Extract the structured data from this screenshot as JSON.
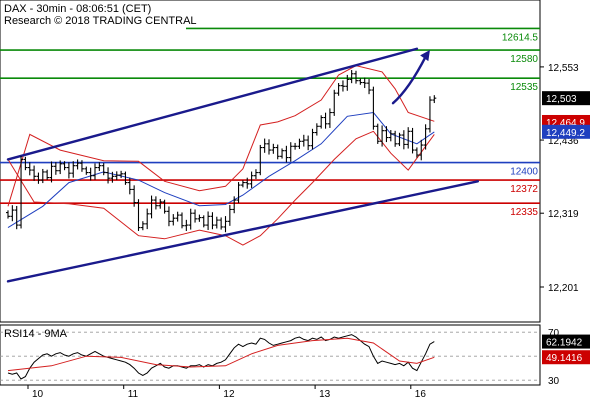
{
  "header": {
    "title": "DAX - 30min - 08:06:51 (CET)",
    "subtitle": "Research © 2018 TRADING CENTRAL"
  },
  "colors": {
    "candle": "#000000",
    "bollinger": "#d42020",
    "moving_average": "#1f3fbf",
    "channel": "#1a1a8c",
    "support": "#cc0000",
    "resistance": "#0a8a0a",
    "pivot": "#1f3fbf",
    "arrow": "#1a1a8c",
    "rsi": "#000000",
    "rsi_ma": "#d42020",
    "tag_dark": "#000000",
    "tag_ma": "#1f3fbf",
    "tag_red": "#cc0000"
  },
  "chart_data": [
    {
      "type": "candlestick",
      "title": "DAX - 30min - 08:06:51 (CET)",
      "subtitle": "Research © 2018 TRADING CENTRAL",
      "ylim": [
        12145,
        12660
      ],
      "y_ticks": [
        12201,
        12319,
        12436,
        12553
      ],
      "y_tick_labels": [
        "12,201",
        "12,319",
        "12,436",
        "12,553"
      ],
      "x_sessions": [
        "10",
        "11",
        "12",
        "13",
        "16"
      ],
      "x_session_starts": [
        0,
        22,
        44,
        66,
        88
      ],
      "x_max": 100,
      "horizontal_levels": [
        {
          "label": "12614.5",
          "value": 12614.5,
          "kind": "resistance"
        },
        {
          "label": "12580",
          "value": 12580,
          "kind": "resistance"
        },
        {
          "label": "12535",
          "value": 12535,
          "kind": "resistance"
        },
        {
          "label": "12400",
          "value": 12400,
          "kind": "pivot"
        },
        {
          "label": "12372",
          "value": 12372,
          "kind": "support"
        },
        {
          "label": "12335",
          "value": 12335,
          "kind": "support"
        }
      ],
      "channel_upper": [
        [
          0,
          12405
        ],
        [
          94,
          12582
        ]
      ],
      "channel_lower": [
        [
          0,
          12210
        ],
        [
          108,
          12370
        ]
      ],
      "arrow": [
        [
          88.5,
          12495
        ],
        [
          97,
          12580
        ]
      ],
      "price_tags": [
        {
          "label": "12,503",
          "value": 12503,
          "kind": "dark"
        },
        {
          "label": "12,464.9",
          "value": 12464.9,
          "kind": "red"
        },
        {
          "label": "12,449.2",
          "value": 12449.2,
          "kind": "ma"
        }
      ],
      "close_values": [
        12314,
        12324,
        12300,
        12405,
        12392,
        12388,
        12378,
        12372,
        12385,
        12376,
        12394,
        12387,
        12398,
        12392,
        12383,
        12395,
        12399,
        12390,
        12384,
        12379,
        12392,
        12395,
        12384,
        12375,
        12378,
        12380,
        12382,
        12368,
        12357,
        12336,
        12296,
        12302,
        12318,
        12340,
        12331,
        12337,
        12322,
        12306,
        12311,
        12316,
        12299,
        12300,
        12319,
        12310,
        12312,
        12300,
        12314,
        12300,
        12308,
        12297,
        12306,
        12325,
        12340,
        12364,
        12368,
        12366,
        12379,
        12384,
        12424,
        12430,
        12420,
        12424,
        12410,
        12419,
        12408,
        12426,
        12426,
        12434,
        12436,
        12427,
        12448,
        12458,
        12472,
        12462,
        12480,
        12511,
        12523,
        12522,
        12533,
        12542,
        12531,
        12528,
        12527,
        12516,
        12458,
        12434,
        12451,
        12440,
        12446,
        12430,
        12444,
        12429,
        12450,
        12420,
        12412,
        12428,
        12454,
        12500,
        12503
      ],
      "bollinger_upper": [
        [
          0,
          12330
        ],
        [
          5,
          12445
        ],
        [
          12,
          12420
        ],
        [
          22,
          12403
        ],
        [
          30,
          12402
        ],
        [
          36,
          12370
        ],
        [
          44,
          12355
        ],
        [
          50,
          12362
        ],
        [
          54,
          12390
        ],
        [
          58,
          12460
        ],
        [
          62,
          12465
        ],
        [
          66,
          12475
        ],
        [
          72,
          12500
        ],
        [
          76,
          12540
        ],
        [
          80,
          12555
        ],
        [
          86,
          12545
        ],
        [
          89,
          12518
        ],
        [
          92,
          12480
        ],
        [
          98,
          12466
        ]
      ],
      "bollinger_lower": [
        [
          0,
          12405
        ],
        [
          6,
          12337
        ],
        [
          14,
          12334
        ],
        [
          22,
          12327
        ],
        [
          30,
          12283
        ],
        [
          36,
          12278
        ],
        [
          44,
          12292
        ],
        [
          50,
          12283
        ],
        [
          54,
          12268
        ],
        [
          58,
          12283
        ],
        [
          62,
          12310
        ],
        [
          66,
          12340
        ],
        [
          70,
          12368
        ],
        [
          75,
          12405
        ],
        [
          80,
          12438
        ],
        [
          84,
          12450
        ],
        [
          88,
          12415
        ],
        [
          92,
          12388
        ],
        [
          98,
          12445
        ]
      ],
      "moving_average": [
        [
          0,
          12296
        ],
        [
          8,
          12330
        ],
        [
          14,
          12368
        ],
        [
          22,
          12385
        ],
        [
          30,
          12372
        ],
        [
          36,
          12352
        ],
        [
          44,
          12331
        ],
        [
          50,
          12333
        ],
        [
          54,
          12348
        ],
        [
          60,
          12378
        ],
        [
          66,
          12403
        ],
        [
          72,
          12430
        ],
        [
          78,
          12474
        ],
        [
          84,
          12480
        ],
        [
          88,
          12446
        ],
        [
          94,
          12430
        ],
        [
          98,
          12449
        ]
      ]
    },
    {
      "type": "line",
      "title": "RSI14 - 9MA",
      "ylim": [
        26,
        76
      ],
      "y_ticks": [
        30,
        50,
        70
      ],
      "y_tick_labels": [
        "30",
        "50",
        "70"
      ],
      "rsi_values": [
        36,
        35,
        36,
        31,
        33,
        40,
        45,
        48,
        51,
        52,
        50,
        52,
        53,
        51,
        50,
        52,
        53,
        51,
        50,
        52,
        54,
        52,
        50,
        49,
        48,
        47,
        46,
        45,
        43,
        40,
        36,
        34,
        36,
        40,
        42,
        44,
        41,
        40,
        42,
        42,
        41,
        40,
        42,
        42,
        43,
        41,
        43,
        42,
        44,
        45,
        47,
        52,
        57,
        60,
        58,
        60,
        61,
        60,
        65,
        64,
        61,
        59,
        60,
        61,
        62,
        63,
        65,
        66,
        64,
        63,
        65,
        64,
        66,
        63,
        64,
        66,
        65,
        66,
        67,
        68,
        66,
        63,
        60,
        58,
        50,
        44,
        46,
        45,
        44,
        43,
        44,
        42,
        45,
        40,
        38,
        45,
        52,
        60,
        62.2
      ],
      "rsi_ma": [
        [
          0,
          38
        ],
        [
          10,
          42
        ],
        [
          18,
          50
        ],
        [
          26,
          49
        ],
        [
          34,
          43
        ],
        [
          42,
          41
        ],
        [
          50,
          42
        ],
        [
          56,
          52
        ],
        [
          62,
          59
        ],
        [
          70,
          63
        ],
        [
          78,
          65
        ],
        [
          84,
          61
        ],
        [
          90,
          46
        ],
        [
          94,
          44
        ],
        [
          98,
          49.1
        ]
      ],
      "tags": [
        {
          "label": "62.1942",
          "value": 62.19,
          "kind": "dark"
        },
        {
          "label": "49.1416",
          "value": 49.14,
          "kind": "red"
        }
      ]
    }
  ]
}
